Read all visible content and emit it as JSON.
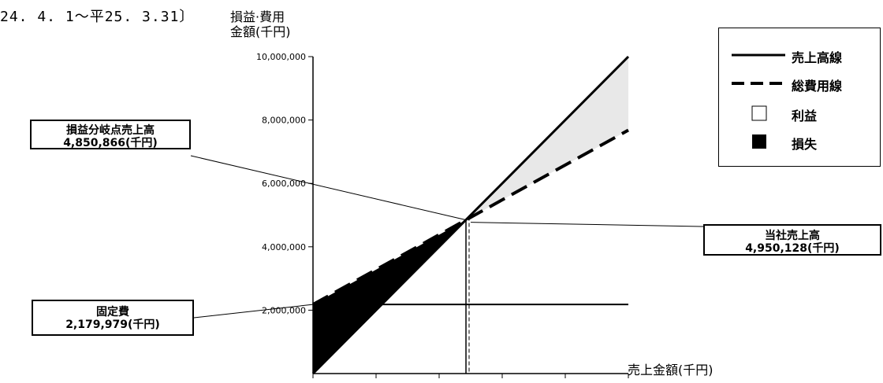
{
  "period_label": "24. 4. 1～平25. 3.31〕",
  "chart_data": {
    "type": "line",
    "title": "",
    "ylabel_line1": "損益·費用",
    "ylabel_line2": "金額(千円)",
    "xlabel": "売上金額(千円)",
    "ylim": [
      0,
      10000000
    ],
    "yticks": [
      2000000,
      4000000,
      6000000,
      8000000,
      10000000
    ],
    "ytick_labels": [
      "2,000,000",
      "4,000,000",
      "6,000,000",
      "8,000,000",
      "10,000,000"
    ],
    "xlim": [
      0,
      10000000
    ],
    "x_tick_count": 6,
    "series": [
      {
        "name": "売上高線",
        "style": "solid",
        "x": [
          0,
          10000000
        ],
        "y": [
          0,
          10000000
        ]
      },
      {
        "name": "総費用線",
        "style": "dashed",
        "x": [
          0,
          10000000
        ],
        "y": [
          2179979,
          7680000
        ]
      },
      {
        "name": "固定費",
        "style": "solid",
        "x": [
          0,
          10000000
        ],
        "y": [
          2179979,
          2179979
        ]
      }
    ],
    "break_even_sales": 4850866,
    "actual_sales": 4950128,
    "fixed_cost": 2179979,
    "regions": [
      {
        "name": "利益",
        "fill": "#e8e8e8"
      },
      {
        "name": "損失",
        "fill": "#000000"
      }
    ],
    "annotations": {
      "break_even": {
        "line1": "損益分岐点売上高",
        "line2": "4,850,866(千円)"
      },
      "actual_sales": {
        "line1": "当社売上高",
        "line2": "4,950,128(千円)"
      },
      "fixed_cost": {
        "line1": "固定費",
        "line2": "2,179,979(千円)"
      }
    }
  },
  "legend": {
    "items": [
      {
        "label": "売上高線",
        "symbol": "solid-line"
      },
      {
        "label": "総費用線",
        "symbol": "dashed-line"
      },
      {
        "label": "利益",
        "symbol": "open-box"
      },
      {
        "label": "損失",
        "symbol": "filled-box"
      }
    ]
  }
}
